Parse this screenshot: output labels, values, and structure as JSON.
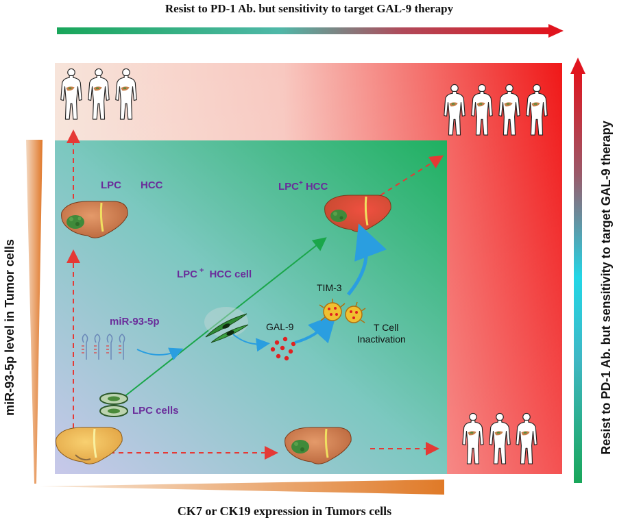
{
  "titles": {
    "top": "Resist to PD-1 Ab. but sensitivity to target GAL-9 therapy",
    "right": "Resist to PD-1 Ab. but sensitivity to target GAL-9 therapy",
    "left": "miR-93-5p level in Tumor cells",
    "bottom": "CK7 or CK19 expression in Tumors cells"
  },
  "labels": {
    "lpc_hcc_left_a": "LPC",
    "lpc_hcc_left_b": "HCC",
    "lpc_plus_hcc_a": "LPC",
    "lpc_plus_hcc_sup": "+",
    "lpc_plus_hcc_b": "HCC",
    "lpc_plus_hcc_cell_a": "LPC",
    "lpc_plus_hcc_cell_sup": "+",
    "lpc_plus_hcc_cell_b": "HCC cell",
    "mir": "miR-93-5p",
    "gal9": "GAL-9",
    "tim3": "TIM-3",
    "tcell_1": "T Cell",
    "tcell_2": "Inactivation",
    "lpc_cells": "LPC cells"
  },
  "colors": {
    "purple_text": "#6a2c9a",
    "arrow_red": "#e53935",
    "arrow_green": "#1aa64a",
    "arrow_blue": "#2a9ee0",
    "liver_brown": "#c8784a",
    "tumor_green": "#3f8a3a"
  }
}
